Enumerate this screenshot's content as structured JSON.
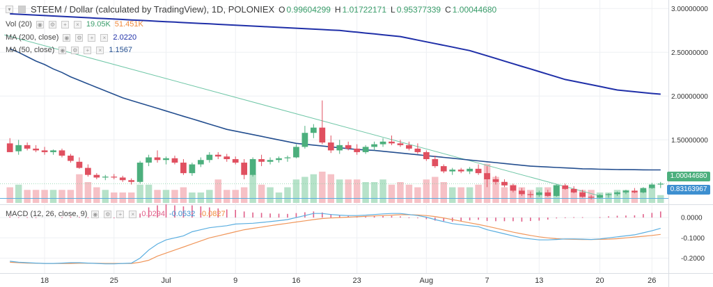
{
  "header": {
    "title": "STEEM / Dollar (calculated by TradingView), 1D, POLONIEX",
    "ohlc": [
      {
        "key": "O",
        "value": "0.99604299"
      },
      {
        "key": "H",
        "value": "1.01722171"
      },
      {
        "key": "L",
        "value": "0.95377339"
      },
      {
        "key": "C",
        "value": "1.00044680"
      }
    ]
  },
  "indicators": {
    "vol": {
      "label": "Vol (20)",
      "v1": "19.05K",
      "v2": "51.451K"
    },
    "ma200": {
      "label": "MA (200, close)",
      "value": "2.0220"
    },
    "ma50": {
      "label": "MA (50, close)",
      "value": "1.1567"
    },
    "macd": {
      "label": "MACD (12, 26, close, 9)",
      "v1": "0.0294",
      "v2": "-0.0532",
      "v3": "-0.0827"
    }
  },
  "price_tags": {
    "current": "1.00044680",
    "line": "0.83163967"
  },
  "colors": {
    "up": "#4caf7d",
    "down": "#e05060",
    "vol_up": "#b6e2c9",
    "vol_down": "#f6c1c6",
    "ma200": "#1f2fa8",
    "ma50": "#234e8f",
    "trend": "#6ec6a6",
    "macd": "#5aaee0",
    "signal": "#f0965a",
    "hist": "#e0608a",
    "axis_text": "#333333",
    "grid": "#eef0f3"
  },
  "chart_data": {
    "type": "candlestick",
    "y_axis_price": {
      "ticks": [
        "3.00000000",
        "2.50000000",
        "2.00000000",
        "1.50000000"
      ],
      "range": [
        0.78,
        3.05
      ]
    },
    "y_axis_macd": {
      "ticks": [
        "0.0000",
        "-0.1000",
        "-0.2000"
      ],
      "range": [
        -0.27,
        0.055
      ]
    },
    "x_axis": {
      "labels": [
        "18",
        "25",
        "Jul",
        "9",
        "16",
        "23",
        "Aug",
        "7",
        "13",
        "20",
        "26"
      ]
    },
    "candles": [
      [
        1.46,
        1.52,
        1.36,
        1.36
      ],
      [
        1.37,
        1.5,
        1.33,
        1.44
      ],
      [
        1.44,
        1.47,
        1.38,
        1.4
      ],
      [
        1.4,
        1.44,
        1.36,
        1.38
      ],
      [
        1.38,
        1.42,
        1.33,
        1.36
      ],
      [
        1.36,
        1.39,
        1.33,
        1.38
      ],
      [
        1.38,
        1.4,
        1.3,
        1.32
      ],
      [
        1.32,
        1.34,
        1.24,
        1.26
      ],
      [
        1.25,
        1.3,
        1.17,
        1.18
      ],
      [
        1.18,
        1.22,
        1.08,
        1.1
      ],
      [
        1.1,
        1.12,
        1.05,
        1.07
      ],
      [
        1.07,
        1.1,
        1.04,
        1.08
      ],
      [
        1.08,
        1.11,
        1.05,
        1.07
      ],
      [
        1.07,
        1.09,
        1.02,
        1.04
      ],
      [
        1.04,
        1.06,
        0.99,
        1.02
      ],
      [
        1.02,
        1.26,
        1.0,
        1.24
      ],
      [
        1.24,
        1.33,
        1.2,
        1.3
      ],
      [
        1.3,
        1.38,
        1.24,
        1.27
      ],
      [
        1.27,
        1.31,
        1.22,
        1.29
      ],
      [
        1.29,
        1.32,
        1.22,
        1.24
      ],
      [
        1.24,
        1.28,
        1.1,
        1.12
      ],
      [
        1.12,
        1.24,
        1.09,
        1.22
      ],
      [
        1.22,
        1.3,
        1.19,
        1.27
      ],
      [
        1.27,
        1.36,
        1.24,
        1.33
      ],
      [
        1.33,
        1.36,
        1.28,
        1.31
      ],
      [
        1.31,
        1.34,
        1.25,
        1.28
      ],
      [
        1.28,
        1.31,
        1.22,
        1.24
      ],
      [
        1.24,
        1.28,
        1.05,
        1.1
      ],
      [
        1.1,
        1.3,
        1.08,
        1.28
      ],
      [
        1.28,
        1.33,
        1.2,
        1.25
      ],
      [
        1.25,
        1.3,
        1.22,
        1.27
      ],
      [
        1.27,
        1.31,
        1.24,
        1.29
      ],
      [
        1.29,
        1.32,
        1.25,
        1.3
      ],
      [
        1.3,
        1.45,
        1.29,
        1.42
      ],
      [
        1.42,
        1.66,
        1.4,
        1.58
      ],
      [
        1.58,
        1.68,
        1.52,
        1.64
      ],
      [
        1.64,
        1.95,
        1.45,
        1.47
      ],
      [
        1.47,
        1.55,
        1.35,
        1.38
      ],
      [
        1.38,
        1.5,
        1.34,
        1.44
      ],
      [
        1.44,
        1.48,
        1.38,
        1.4
      ],
      [
        1.4,
        1.45,
        1.33,
        1.36
      ],
      [
        1.36,
        1.44,
        1.34,
        1.42
      ],
      [
        1.42,
        1.48,
        1.38,
        1.45
      ],
      [
        1.45,
        1.52,
        1.42,
        1.48
      ],
      [
        1.48,
        1.55,
        1.44,
        1.46
      ],
      [
        1.46,
        1.5,
        1.42,
        1.44
      ],
      [
        1.44,
        1.48,
        1.38,
        1.4
      ],
      [
        1.4,
        1.46,
        1.34,
        1.36
      ],
      [
        1.36,
        1.38,
        1.26,
        1.28
      ],
      [
        1.28,
        1.32,
        1.18,
        1.2
      ],
      [
        1.2,
        1.22,
        1.12,
        1.14
      ],
      [
        1.14,
        1.18,
        1.1,
        1.16
      ],
      [
        1.16,
        1.18,
        1.12,
        1.14
      ],
      [
        1.14,
        1.19,
        1.11,
        1.17
      ],
      [
        1.17,
        1.22,
        1.1,
        1.12
      ],
      [
        1.12,
        1.2,
        0.96,
        1.05
      ],
      [
        1.05,
        1.09,
        0.99,
        1.02
      ],
      [
        1.02,
        1.05,
        0.96,
        0.98
      ],
      [
        0.98,
        1.0,
        0.9,
        0.92
      ],
      [
        0.92,
        0.95,
        0.86,
        0.88
      ],
      [
        0.88,
        0.91,
        0.84,
        0.87
      ],
      [
        0.87,
        0.92,
        0.85,
        0.9
      ],
      [
        0.9,
        0.93,
        0.85,
        0.86
      ],
      [
        0.86,
        0.99,
        0.85,
        0.98
      ],
      [
        0.98,
        1.0,
        0.93,
        0.94
      ],
      [
        0.94,
        0.97,
        0.89,
        0.9
      ],
      [
        0.9,
        0.93,
        0.84,
        0.85
      ],
      [
        0.85,
        0.87,
        0.82,
        0.84
      ],
      [
        0.84,
        0.88,
        0.83,
        0.87
      ],
      [
        0.87,
        0.89,
        0.84,
        0.88
      ],
      [
        0.88,
        0.91,
        0.86,
        0.9
      ],
      [
        0.9,
        0.93,
        0.88,
        0.92
      ],
      [
        0.92,
        0.95,
        0.89,
        0.9
      ],
      [
        0.9,
        0.96,
        0.89,
        0.95
      ],
      [
        0.95,
        1.01,
        0.94,
        0.99
      ],
      [
        0.99,
        1.02,
        0.95,
        1.0
      ]
    ],
    "volumes": [
      30,
      35,
      25,
      25,
      25,
      25,
      25,
      25,
      55,
      40,
      30,
      25,
      20,
      20,
      20,
      35,
      35,
      25,
      25,
      25,
      30,
      20,
      20,
      25,
      45,
      25,
      25,
      30,
      55,
      35,
      30,
      20,
      30,
      45,
      50,
      55,
      60,
      55,
      45,
      45,
      45,
      40,
      40,
      45,
      35,
      40,
      35,
      30,
      45,
      50,
      40,
      30,
      30,
      30,
      35,
      75,
      50,
      30,
      35,
      30,
      25,
      30,
      30,
      35,
      30,
      25,
      25,
      25,
      20,
      20,
      25,
      25,
      20,
      25,
      30,
      15
    ],
    "ma200": [
      2.94,
      2.935,
      2.93,
      2.925,
      2.92,
      2.915,
      2.91,
      2.905,
      2.9,
      2.895,
      2.89,
      2.885,
      2.88,
      2.875,
      2.87,
      2.865,
      2.86,
      2.855,
      2.85,
      2.845,
      2.84,
      2.835,
      2.83,
      2.825,
      2.82,
      2.815,
      2.81,
      2.805,
      2.8,
      2.795,
      2.79,
      2.785,
      2.78,
      2.775,
      2.77,
      2.765,
      2.76,
      2.755,
      2.75,
      2.74,
      2.73,
      2.72,
      2.71,
      2.7,
      2.69,
      2.68,
      2.66,
      2.64,
      2.62,
      2.6,
      2.58,
      2.56,
      2.54,
      2.52,
      2.49,
      2.46,
      2.43,
      2.4,
      2.37,
      2.34,
      2.31,
      2.28,
      2.25,
      2.22,
      2.19,
      2.17,
      2.15,
      2.13,
      2.11,
      2.09,
      2.07,
      2.06,
      2.05,
      2.04,
      2.03,
      2.022
    ],
    "ma50": [
      2.54,
      2.5,
      2.45,
      2.4,
      2.36,
      2.31,
      2.27,
      2.22,
      2.18,
      2.14,
      2.1,
      2.06,
      2.02,
      1.98,
      1.95,
      1.92,
      1.89,
      1.86,
      1.83,
      1.8,
      1.77,
      1.74,
      1.71,
      1.68,
      1.65,
      1.62,
      1.6,
      1.58,
      1.56,
      1.54,
      1.52,
      1.5,
      1.48,
      1.46,
      1.45,
      1.44,
      1.43,
      1.42,
      1.41,
      1.4,
      1.39,
      1.385,
      1.38,
      1.37,
      1.36,
      1.35,
      1.34,
      1.33,
      1.32,
      1.31,
      1.3,
      1.29,
      1.28,
      1.27,
      1.26,
      1.25,
      1.24,
      1.23,
      1.22,
      1.21,
      1.2,
      1.195,
      1.19,
      1.185,
      1.18,
      1.175,
      1.17,
      1.168,
      1.165,
      1.163,
      1.161,
      1.16,
      1.159,
      1.158,
      1.157,
      1.1567
    ],
    "trendline": {
      "start": 2.7,
      "end": 0.86
    },
    "hline": 0.83163967,
    "macd": [
      -0.215,
      -0.22,
      -0.222,
      -0.224,
      -0.226,
      -0.226,
      -0.224,
      -0.222,
      -0.222,
      -0.224,
      -0.226,
      -0.228,
      -0.228,
      -0.226,
      -0.224,
      -0.2,
      -0.16,
      -0.13,
      -0.11,
      -0.1,
      -0.09,
      -0.07,
      -0.06,
      -0.05,
      -0.045,
      -0.04,
      -0.032,
      -0.03,
      -0.028,
      -0.024,
      -0.02,
      -0.015,
      -0.01,
      0.0,
      0.01,
      0.02,
      0.02,
      0.015,
      0.012,
      0.01,
      0.01,
      0.012,
      0.015,
      0.018,
      0.02,
      0.02,
      0.015,
      0.01,
      0.002,
      -0.01,
      -0.02,
      -0.03,
      -0.035,
      -0.04,
      -0.045,
      -0.06,
      -0.07,
      -0.08,
      -0.09,
      -0.1,
      -0.105,
      -0.11,
      -0.11,
      -0.108,
      -0.105,
      -0.105,
      -0.106,
      -0.108,
      -0.105,
      -0.1,
      -0.095,
      -0.09,
      -0.085,
      -0.075,
      -0.065,
      -0.053
    ],
    "signal": [
      -0.22,
      -0.222,
      -0.224,
      -0.225,
      -0.226,
      -0.226,
      -0.226,
      -0.226,
      -0.225,
      -0.225,
      -0.225,
      -0.226,
      -0.226,
      -0.226,
      -0.226,
      -0.22,
      -0.21,
      -0.19,
      -0.175,
      -0.16,
      -0.145,
      -0.13,
      -0.115,
      -0.1,
      -0.09,
      -0.08,
      -0.07,
      -0.06,
      -0.053,
      -0.047,
      -0.04,
      -0.034,
      -0.028,
      -0.022,
      -0.016,
      -0.01,
      -0.005,
      -0.002,
      0.0,
      0.002,
      0.004,
      0.006,
      0.008,
      0.01,
      0.012,
      0.014,
      0.014,
      0.013,
      0.01,
      0.005,
      -0.002,
      -0.01,
      -0.018,
      -0.026,
      -0.034,
      -0.043,
      -0.052,
      -0.062,
      -0.072,
      -0.08,
      -0.088,
      -0.095,
      -0.1,
      -0.104,
      -0.106,
      -0.107,
      -0.108,
      -0.108,
      -0.107,
      -0.106,
      -0.104,
      -0.1,
      -0.096,
      -0.092,
      -0.088,
      -0.083
    ]
  }
}
